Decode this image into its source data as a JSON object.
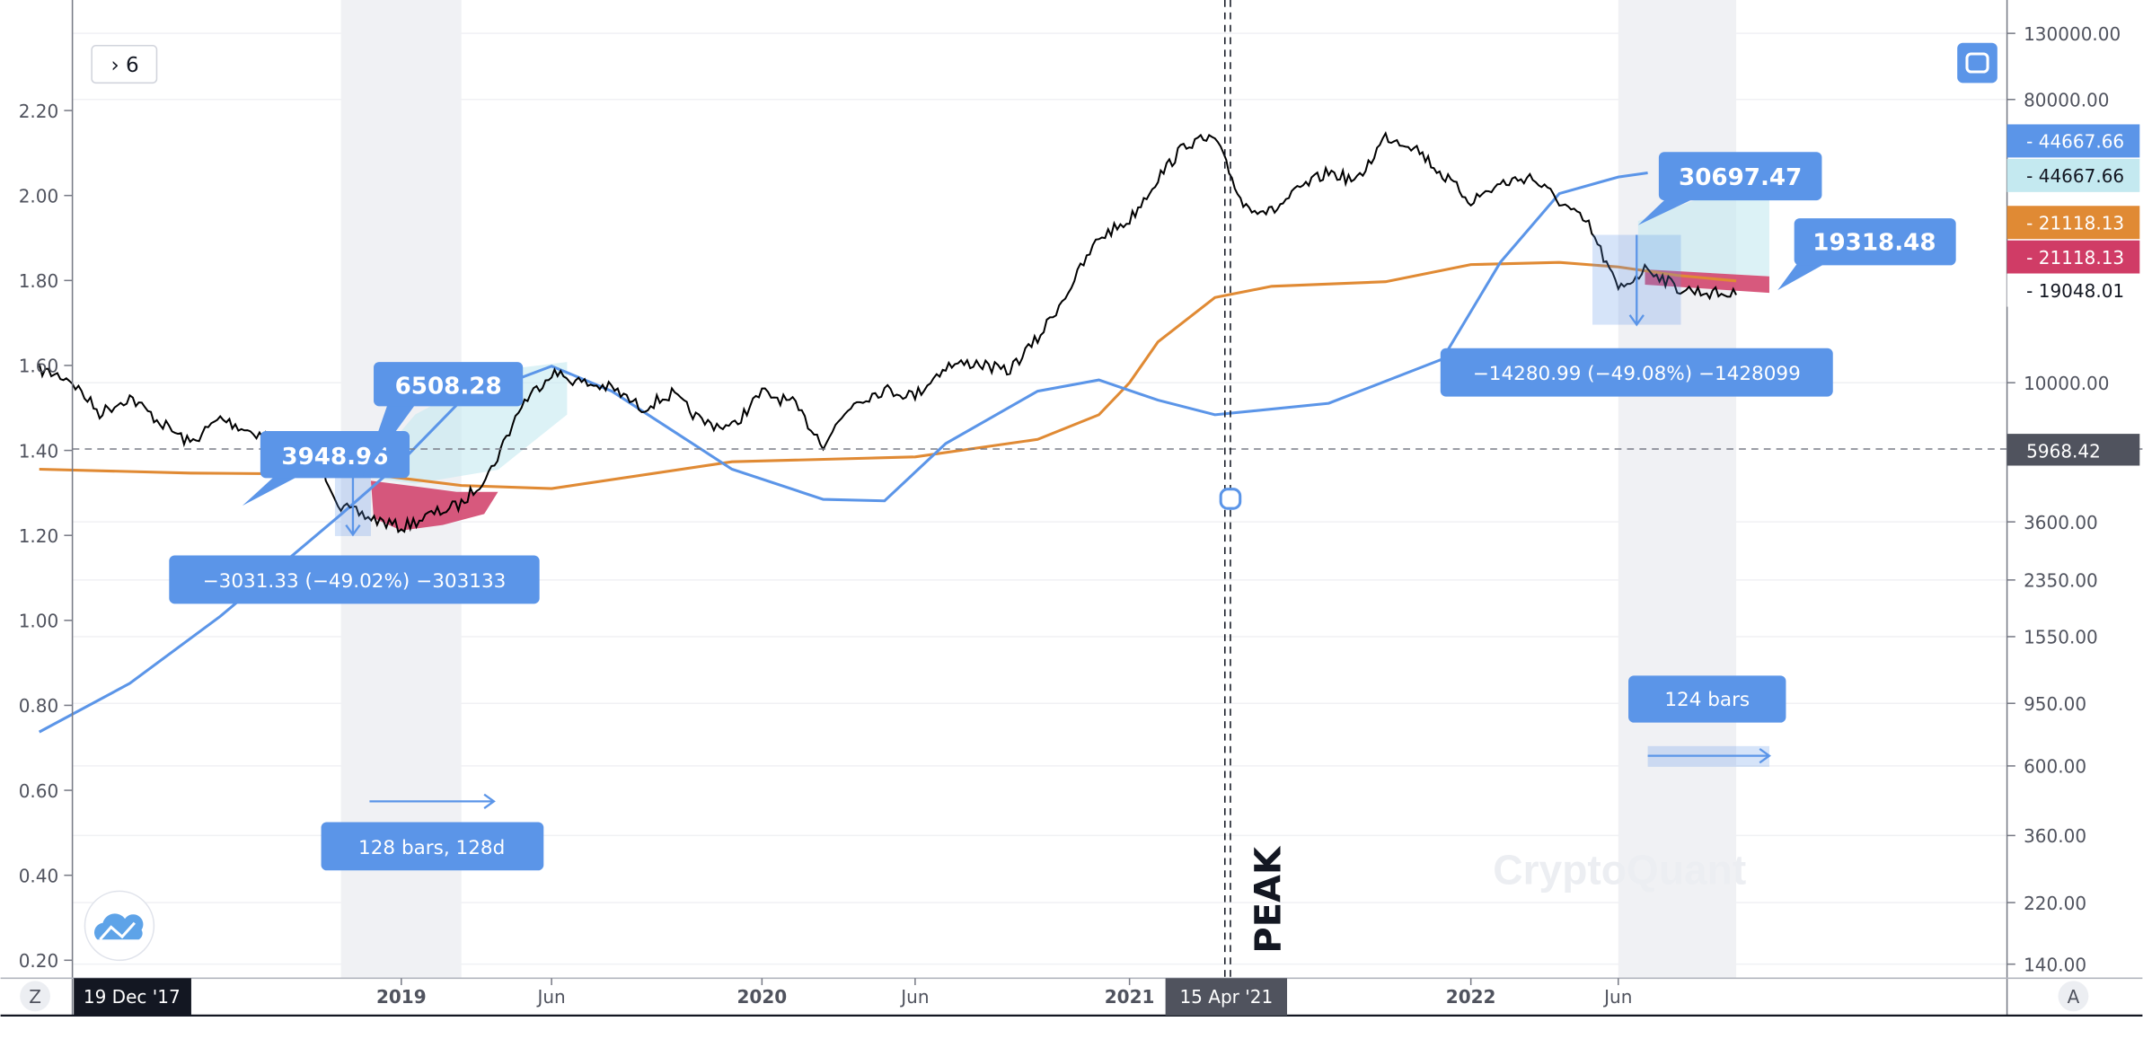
{
  "toolbar": {
    "collapse_label": "› 6",
    "collapse_icon": "chevron-right-icon",
    "fullscreen_icon": "fullscreen-icon"
  },
  "axis_buttons": {
    "left": "Z",
    "right": "A"
  },
  "cursor_tags": {
    "date_left": "19 Dec '17",
    "date_cursor": "15 Apr '21",
    "price_cursor": "5968.42"
  },
  "price_tags": [
    {
      "label": "44667.66",
      "bg": "#5b95e8",
      "fg": "#ffffff"
    },
    {
      "label": "44667.66",
      "bg": "#c4e9f0",
      "fg": "#131722"
    },
    {
      "label": "21118.13",
      "bg": "#e08a34",
      "fg": "#ffffff"
    },
    {
      "label": "21118.13",
      "bg": "#d03c66",
      "fg": "#ffffff"
    },
    {
      "label": "19048.01",
      "bg": "#ffffff",
      "fg": "#131722"
    }
  ],
  "annotations": {
    "callout_1": "3948.96",
    "callout_2": "6508.28",
    "measure_1": "−3031.33 (−49.02%) −303133",
    "range_1": "128 bars, 128d",
    "callout_3": "30697.47",
    "callout_4": "19318.48",
    "measure_2": "−14280.99 (−49.08%) −1428099",
    "range_2": "124 bars",
    "peak_label": "PEAK"
  },
  "watermark": "CryptoQuant",
  "colors": {
    "price": "#000000",
    "orange_line": "#e08a34",
    "blue_line": "#5b95e8",
    "callout": "#5b95e8",
    "shade": "#f0f1f4",
    "drawdown_fill": "#d03c66"
  },
  "chart_data": {
    "type": "line",
    "x_ticks": [
      "2019",
      "Jun",
      "2020",
      "Jun",
      "2021",
      "2022",
      "Jun"
    ],
    "x_tick_dates": [
      "2019-01",
      "2019-06",
      "2020-01",
      "2020-06",
      "2021-01",
      "2022-01",
      "2022-06"
    ],
    "left_axis": {
      "ticks": [
        "2.20",
        "2.00",
        "1.80",
        "1.60",
        "1.40",
        "1.20",
        "1.00",
        "0.80",
        "0.60",
        "0.40",
        "0.20"
      ],
      "range": [
        0.2,
        2.2
      ]
    },
    "right_axis": {
      "scale": "log",
      "ticks": [
        "130000.00",
        "80000.00",
        "10000.00",
        "3600.00",
        "2350.00",
        "1550.00",
        "950.00",
        "600.00",
        "360.00",
        "220.00",
        "140.00"
      ],
      "range": [
        140,
        130000
      ]
    },
    "grid": true,
    "series": [
      {
        "key": "price",
        "color": "#000000",
        "x": [
          "2018-01",
          "2018-02",
          "2018-03",
          "2018-04",
          "2018-05",
          "2018-06",
          "2018-07",
          "2018-08",
          "2018-09",
          "2018-10",
          "2018-11",
          "2018-12",
          "2019-01",
          "2019-02",
          "2019-03",
          "2019-04",
          "2019-05",
          "2019-06",
          "2019-07",
          "2019-08",
          "2019-09",
          "2019-10",
          "2019-11",
          "2019-12",
          "2020-01",
          "2020-02",
          "2020-03",
          "2020-04",
          "2020-05",
          "2020-06",
          "2020-07",
          "2020-08",
          "2020-09",
          "2020-10",
          "2020-11",
          "2020-12",
          "2021-01",
          "2021-02",
          "2021-03",
          "2021-04",
          "2021-05",
          "2021-06",
          "2021-07",
          "2021-08",
          "2021-09",
          "2021-10",
          "2021-11",
          "2021-12",
          "2022-01",
          "2022-02",
          "2022-03",
          "2022-04",
          "2022-05",
          "2022-06",
          "2022-07",
          "2022-08",
          "2022-09",
          "2022-10"
        ],
        "values": [
          11000,
          10300,
          8000,
          9000,
          7500,
          6400,
          7700,
          7000,
          6600,
          6400,
          4000,
          3700,
          3450,
          3800,
          4100,
          5300,
          8500,
          10800,
          10000,
          9600,
          8300,
          9200,
          7500,
          7200,
          9300,
          8600,
          6400,
          8700,
          9500,
          9100,
          11300,
          11600,
          10800,
          13800,
          19700,
          29000,
          33000,
          45000,
          58000,
          60000,
          37000,
          35000,
          41500,
          47000,
          43800,
          61000,
          57000,
          46000,
          38000,
          43000,
          45500,
          38000,
          31700,
          19800,
          23300,
          20000,
          19400,
          19050
        ]
      },
      {
        "key": "orange",
        "color": "#e08a34",
        "x": [
          "2018-01",
          "2018-06",
          "2018-12",
          "2019-03",
          "2019-06",
          "2019-12",
          "2020-06",
          "2020-10",
          "2020-12",
          "2021-01",
          "2021-02",
          "2021-04",
          "2021-06",
          "2021-10",
          "2022-01",
          "2022-04",
          "2022-06",
          "2022-08",
          "2022-10"
        ],
        "values": [
          5300,
          5150,
          5100,
          4700,
          4600,
          5600,
          5800,
          6600,
          7900,
          10000,
          13500,
          18700,
          20300,
          21000,
          23800,
          24200,
          23400,
          22000,
          21118
        ]
      },
      {
        "key": "blue",
        "color": "#5b95e8",
        "x": [
          "2018-01",
          "2018-04",
          "2018-07",
          "2018-11",
          "2019-01",
          "2019-03",
          "2019-06",
          "2019-08",
          "2019-12",
          "2020-03",
          "2020-05",
          "2020-07",
          "2020-10",
          "2020-12",
          "2021-02",
          "2021-04",
          "2021-08",
          "2021-12",
          "2022-02",
          "2022-04",
          "2022-06",
          "2022-07"
        ],
        "values": [
          770,
          1100,
          1800,
          3800,
          5600,
          8800,
          11300,
          9400,
          5300,
          4250,
          4200,
          6400,
          9400,
          10200,
          8800,
          7900,
          8600,
          11900,
          24200,
          40100,
          45300,
          46700
        ]
      }
    ],
    "shaded_ranges": [
      [
        "2018-11",
        "2019-03"
      ],
      [
        "2022-06",
        "2022-10"
      ]
    ],
    "vertical_marker": "2021-04-15",
    "horizontal_marker": 5968.42
  }
}
